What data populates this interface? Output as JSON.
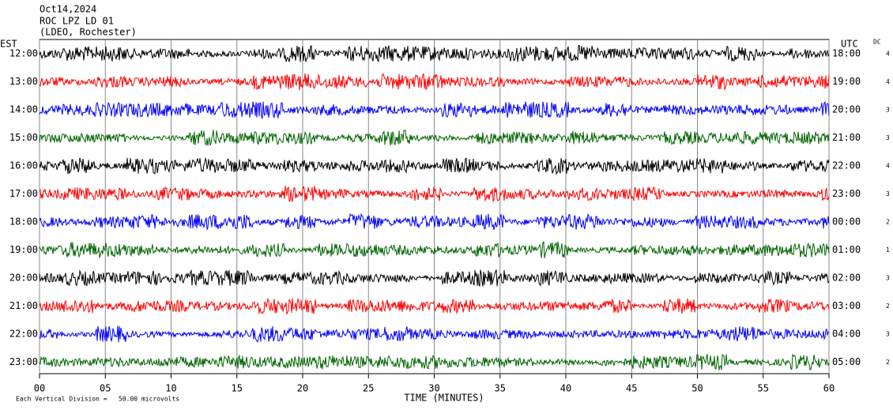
{
  "chart_data": {
    "type": "helicorder",
    "title": [
      "Oct14,2024",
      "ROC LPZ LD 01",
      "(LDEO, Rochester)"
    ],
    "left_axis_label": "EST",
    "right_axis_label": "UTC",
    "dc_label": "DC",
    "xlabel": "TIME (MINUTES)",
    "footer": "Each Vertical Division =   50.00 microvolts",
    "xlim": [
      0,
      60
    ],
    "xticks": [
      {
        "value": 0,
        "label": "00"
      },
      {
        "value": 5,
        "label": "05"
      },
      10,
      15,
      20,
      25,
      30,
      35,
      40,
      45,
      50,
      55,
      60
    ],
    "grid": true,
    "rows": [
      {
        "left": "12:00",
        "right": "18:00",
        "dc": 4,
        "color": "#000000"
      },
      {
        "left": "13:00",
        "right": "19:00",
        "dc": 4,
        "color": "#ff0000"
      },
      {
        "left": "14:00",
        "right": "20:00",
        "dc": 3,
        "color": "#0000ff"
      },
      {
        "left": "15:00",
        "right": "21:00",
        "dc": 3,
        "color": "#006400"
      },
      {
        "left": "16:00",
        "right": "22:00",
        "dc": 4,
        "color": "#000000"
      },
      {
        "left": "17:00",
        "right": "23:00",
        "dc": 3,
        "color": "#ff0000"
      },
      {
        "left": "18:00",
        "right": "00:00",
        "dc": 2,
        "color": "#0000ff"
      },
      {
        "left": "19:00",
        "right": "01:00",
        "dc": 1,
        "color": "#006400"
      },
      {
        "left": "20:00",
        "right": "02:00",
        "dc": 3,
        "color": "#000000"
      },
      {
        "left": "21:00",
        "right": "03:00",
        "dc": 2,
        "color": "#ff0000"
      },
      {
        "left": "22:00",
        "right": "04:00",
        "dc": 3,
        "color": "#0000ff"
      },
      {
        "left": "23:00",
        "right": "05:00",
        "dc": 2,
        "color": "#006400"
      }
    ]
  }
}
